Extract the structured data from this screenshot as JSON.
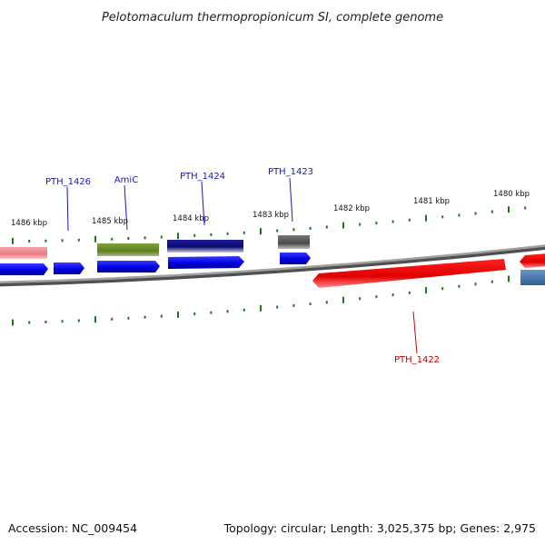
{
  "title": "Pelotomaculum thermopropionicum SI, complete genome",
  "footer": {
    "accession": "Accession: NC_009454",
    "summary": "Topology: circular; Length: 3,025,375 bp; Genes: 2,975"
  },
  "scale": {
    "kbp_labels": [
      "1486 kbp",
      "1485 kbp",
      "1484 kbp",
      "1483 kbp",
      "1482 kbp",
      "1481 kbp",
      "1480 kbp"
    ]
  },
  "gene_labels": {
    "pth_1426": "PTH_1426",
    "amic": "AmiC",
    "pth_1424": "PTH_1424",
    "pth_1423": "PTH_1423",
    "pth_1422": "PTH_1422"
  },
  "colors": {
    "forward_gene": "#0000ee",
    "reverse_gene": "#ee0000",
    "tick": "#1a7a1a",
    "backbone": "#808080",
    "label_blue": "#1a1ab0",
    "label_red": "#cc0000"
  }
}
